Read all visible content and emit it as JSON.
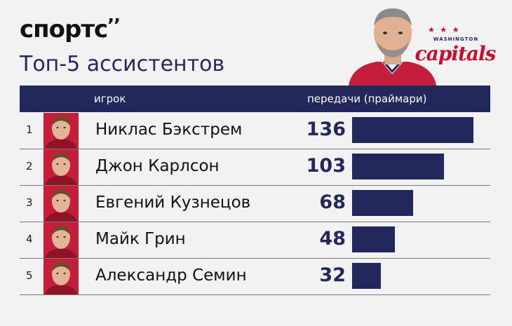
{
  "brand": {
    "name": "спортс",
    "mark": "’’"
  },
  "title": "Топ-5 ассистентов",
  "logo": {
    "team": "capitals",
    "city": "WASHINGTON",
    "stars": "★ ★ ★",
    "color": "#c8102e"
  },
  "colors": {
    "navy": "#22285b",
    "red": "#c41e3a",
    "background": "#f2f2f2"
  },
  "chart_data": {
    "type": "bar",
    "orientation": "horizontal",
    "columns": {
      "player": "игрок",
      "value": "передачи (праймари)"
    },
    "ranks": [
      "1",
      "2",
      "3",
      "4",
      "5"
    ],
    "categories": [
      "Никлас Бэкстрем",
      "Джон Карлсон",
      "Евгений Кузнецов",
      "Майк Грин",
      "Александр Семин"
    ],
    "values": [
      136,
      103,
      68,
      48,
      32
    ],
    "xlim": [
      0,
      136
    ]
  }
}
